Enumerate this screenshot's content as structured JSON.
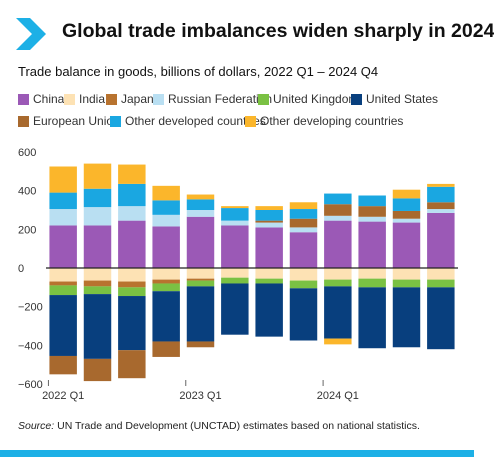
{
  "title": "Global trade imbalances widen sharply in 2024",
  "source_label": "Source:",
  "source_text": " UN Trade and Development (UNCTAD) estimates based on national statistics.",
  "chart_data": {
    "type": "bar",
    "stacked": true,
    "title": "Global trade imbalances widen sharply in 2024",
    "subtitle": "Trade balance in goods, billions of dollars, 2022 Q1 – 2024 Q4",
    "xlabel": "",
    "ylabel": "",
    "ylim": [
      -600,
      600
    ],
    "yticks": [
      600,
      400,
      200,
      0,
      -200,
      -400,
      -600
    ],
    "grid": false,
    "legend_position": "top",
    "categories": [
      "2022 Q1",
      "2022 Q2",
      "2022 Q3",
      "2022 Q4",
      "2023 Q1",
      "2023 Q2",
      "2023 Q3",
      "2023 Q4",
      "2024 Q1",
      "2024 Q2",
      "2024 Q3",
      "2024 Q4"
    ],
    "tick_labels": [
      {
        "category": "2022 Q1",
        "label": "2022 Q1"
      },
      {
        "category": "2023 Q1",
        "label": "2023 Q1"
      },
      {
        "category": "2024 Q1",
        "label": "2024 Q1"
      }
    ],
    "series": [
      {
        "name": "China",
        "color": "#9b59b6",
        "values": [
          220,
          220,
          245,
          215,
          265,
          220,
          210,
          185,
          245,
          240,
          235,
          285
        ]
      },
      {
        "name": "India",
        "color": "#fde2b4",
        "values": [
          -70,
          -65,
          -70,
          -60,
          -55,
          -50,
          -55,
          -65,
          -60,
          -55,
          -60,
          -60
        ]
      },
      {
        "name": "Japan",
        "color": "#b8732f",
        "values": [
          -20,
          -30,
          -30,
          -20,
          -10,
          0,
          0,
          0,
          0,
          0,
          0,
          0
        ]
      },
      {
        "name": "Russian Federation",
        "color": "#b9dff2",
        "values": [
          85,
          95,
          75,
          60,
          35,
          25,
          25,
          25,
          25,
          25,
          20,
          20
        ]
      },
      {
        "name": "United Kingdom",
        "color": "#7ac143",
        "values": [
          -50,
          -40,
          -45,
          -40,
          -30,
          -30,
          -25,
          -40,
          -35,
          -45,
          -40,
          -40
        ]
      },
      {
        "name": "United States",
        "color": "#083f7e",
        "values": [
          -315,
          -335,
          -280,
          -260,
          -285,
          -265,
          -275,
          -270,
          -270,
          -315,
          -310,
          -320
        ]
      },
      {
        "name": "European Union",
        "color": "#a8692e",
        "values": [
          -95,
          -115,
          -145,
          -80,
          -30,
          0,
          10,
          45,
          60,
          55,
          40,
          35
        ]
      },
      {
        "name": "Other developed countries",
        "color": "#1aa7e1",
        "values": [
          85,
          95,
          115,
          75,
          55,
          65,
          55,
          50,
          55,
          55,
          65,
          80
        ]
      },
      {
        "name": "Other developing countries",
        "color": "#fbb62b",
        "values": [
          135,
          130,
          100,
          75,
          25,
          10,
          20,
          35,
          -30,
          0,
          45,
          15
        ]
      }
    ]
  }
}
